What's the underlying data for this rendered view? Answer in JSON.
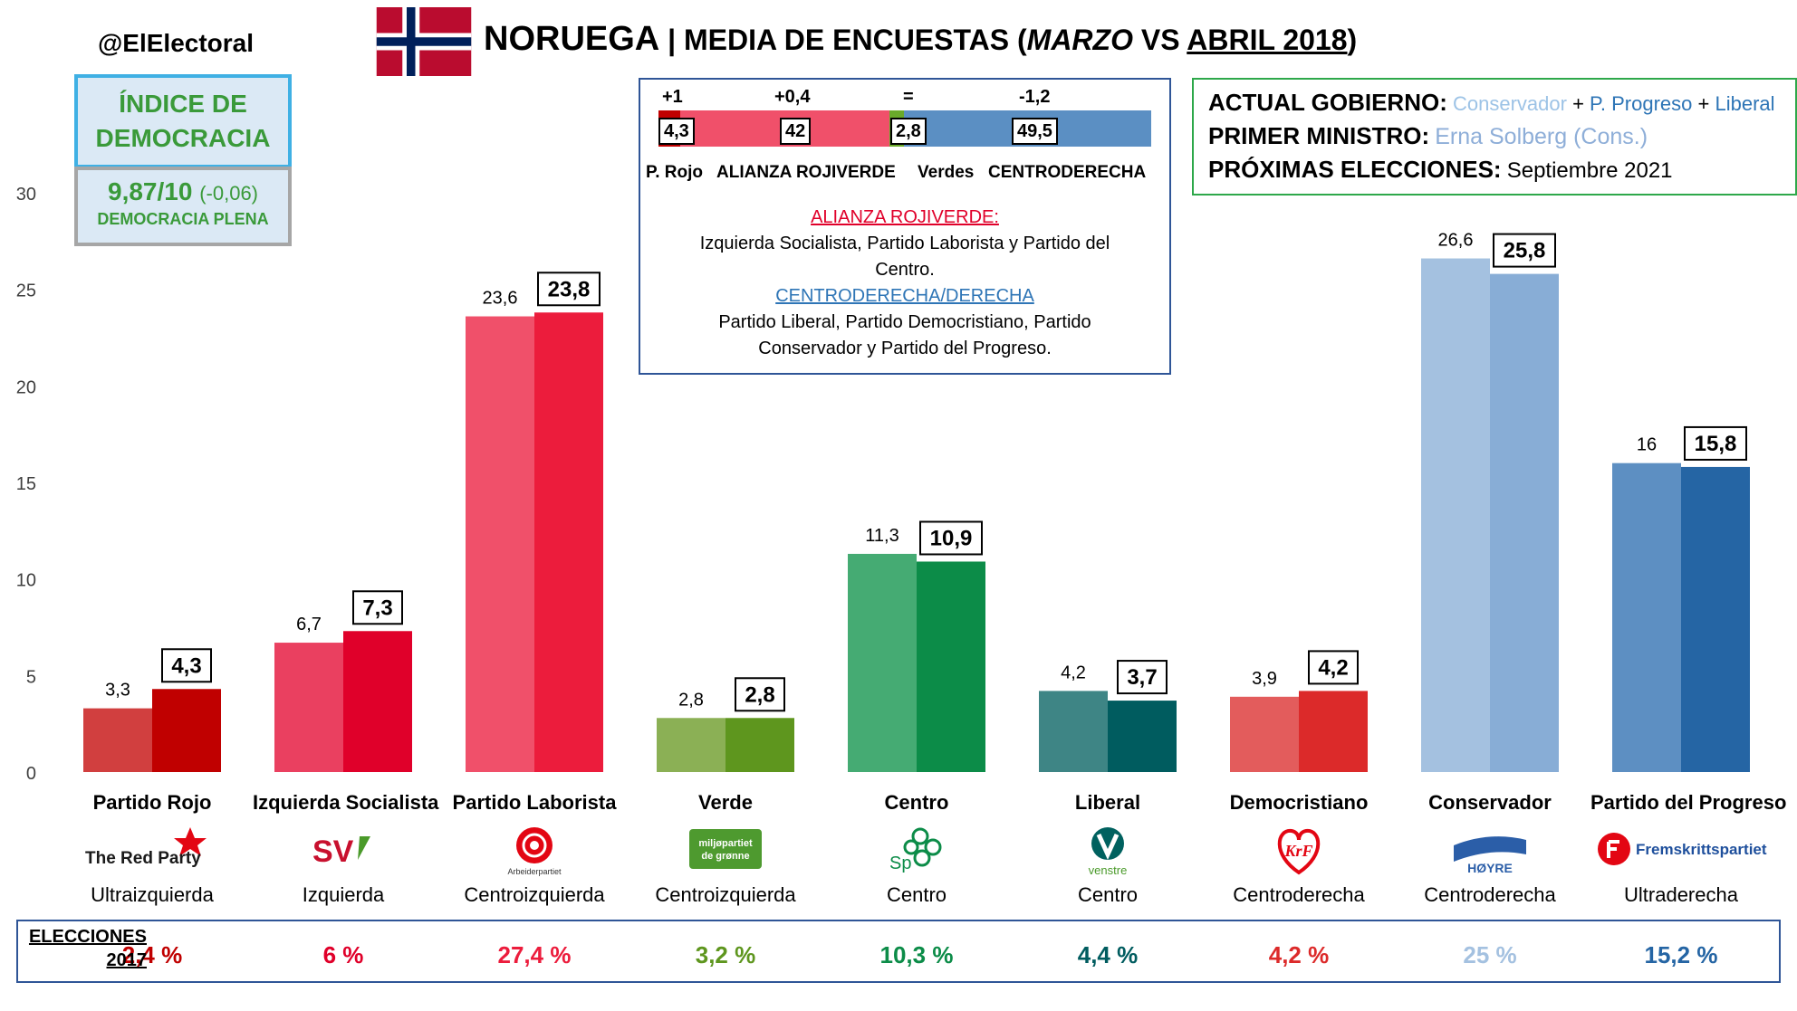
{
  "header": {
    "handle": "@ElElectoral",
    "title_country": "NORUEGA",
    "title_sep": " | ",
    "title_main": "MEDIA DE ENCUESTAS (",
    "title_month1": "MARZO",
    "title_vs": " VS ",
    "title_month2": "ABRIL 2018",
    "title_close": ")"
  },
  "democracy": {
    "header": "ÍNDICE DE DEMOCRACIA",
    "score": "9,87/10",
    "change": "(-0,06)",
    "label": "DEMOCRACIA PLENA"
  },
  "blocs": {
    "items": [
      {
        "name": "P. Rojo",
        "value": "4,3",
        "value_num": 4.3,
        "change": "+1",
        "color": "#c00000"
      },
      {
        "name": "ALIANZA ROJIVERDE",
        "value": "42",
        "value_num": 42,
        "change": "+0,4",
        "color": "#f0506a"
      },
      {
        "name": "Verdes",
        "value": "2,8",
        "value_num": 2.8,
        "change": "=",
        "color": "#6aaa2a"
      },
      {
        "name": "CENTRODERECHA",
        "value": "49,5",
        "value_num": 49.5,
        "change": "-1,2",
        "color": "#5b8fc3"
      }
    ],
    "red_green_title": "ALIANZA ROJIVERDE:",
    "red_green_desc_1": "Izquierda Socialista, Partido Laborista y Partido del",
    "red_green_desc_2": "Centro.",
    "right_title": "CENTRODERECHA/DERECHA",
    "right_desc_1": "Partido Liberal, Partido Democristiano, Partido",
    "right_desc_2": "Conservador y Partido del Progreso."
  },
  "government": {
    "gov_label": "ACTUAL GOBIERNO:",
    "gov_party1": "Conservador",
    "plus": "+",
    "gov_party2": "P. Progreso",
    "gov_party3": "Liberal",
    "pm_label": "PRIMER MINISTRO:",
    "pm_name": "Erna Solberg (Cons.)",
    "next_label": "PRÓXIMAS ELECCIONES:",
    "next_date": "Septiembre 2021"
  },
  "chart_data": {
    "type": "bar",
    "ylim": [
      0,
      30
    ],
    "yticks": [
      0,
      5,
      10,
      15,
      20,
      25,
      30
    ],
    "grid": false,
    "categories": [
      "Partido Rojo",
      "Izquierda Socialista",
      "Partido Laborista",
      "Verde",
      "Centro",
      "Liberal",
      "Democristiano",
      "Conservador",
      "Partido del Progreso"
    ],
    "series": [
      {
        "values": [
          3.3,
          6.7,
          23.6,
          2.8,
          11.3,
          4.2,
          3.9,
          26.6,
          16
        ],
        "labels": [
          "3,3",
          "6,7",
          "23,6",
          "2,8",
          "11,3",
          "4,2",
          "3,9",
          "26,6",
          "16"
        ]
      },
      {
        "values": [
          4.3,
          7.3,
          23.8,
          2.8,
          10.9,
          3.7,
          4.2,
          25.8,
          15.8
        ],
        "labels": [
          "4,3",
          "7,3",
          "23,8",
          "2,8",
          "10,9",
          "3,7",
          "4,2",
          "25,8",
          "15,8"
        ]
      }
    ],
    "colors_march": [
      "#d13f3f",
      "#ea4060",
      "#f0506a",
      "#8bb055",
      "#45ab73",
      "#3e8585",
      "#e35c5c",
      "#a4c1e0",
      "#5d8fc2"
    ],
    "colors_april": [
      "#c00000",
      "#e0002a",
      "#ec1c3c",
      "#5e961e",
      "#0c8c48",
      "#005c5f",
      "#dc2a2a",
      "#88add6",
      "#2565a4"
    ]
  },
  "parties": [
    {
      "name": "Partido Rojo",
      "type": "Ultraizquierda",
      "logo_text": "The Red Party",
      "logo": "red-party-logo",
      "election": "2,4 %",
      "election_color": "#c00000"
    },
    {
      "name": "Izquierda Socialista",
      "type": "Izquierda",
      "logo_text": "SV",
      "logo": "sv-logo",
      "election": "6 %",
      "election_color": "#e0002a"
    },
    {
      "name": "Partido Laborista",
      "type": "Centroizquierda",
      "logo_text": "Arbeiderpartiet",
      "logo": "rose-logo",
      "election": "27,4 %",
      "election_color": "#ec1c3c"
    },
    {
      "name": "Verde",
      "type": "Centroizquierda",
      "logo_text": "miljøpartiet de grønne",
      "logo": "mdg-logo",
      "election": "3,2 %",
      "election_color": "#5e961e"
    },
    {
      "name": "Centro",
      "type": "Centro",
      "logo_text": "Sp",
      "logo": "clover-logo",
      "election": "10,3 %",
      "election_color": "#0c8c48"
    },
    {
      "name": "Liberal",
      "type": "Centro",
      "logo_text": "venstre",
      "logo": "venstre-logo",
      "election": "4,4 %",
      "election_color": "#005c5f"
    },
    {
      "name": "Democristiano",
      "type": "Centroderecha",
      "logo_text": "KrF",
      "logo": "krf-logo",
      "election": "4,2 %",
      "election_color": "#dc2a2a"
    },
    {
      "name": "Conservador",
      "type": "Centroderecha",
      "logo_text": "HØYRE",
      "logo": "hoyre-logo",
      "election": "25 %",
      "election_color": "#a4c1e0"
    },
    {
      "name": "Partido del Progreso",
      "type": "Ultraderecha",
      "logo_text": "Fremskrittspartiet",
      "logo": "frp-logo",
      "election": "15,2 %",
      "election_color": "#2565a4"
    }
  ],
  "elections": {
    "label_1": "ELECCIONES",
    "label_2": "2017"
  }
}
